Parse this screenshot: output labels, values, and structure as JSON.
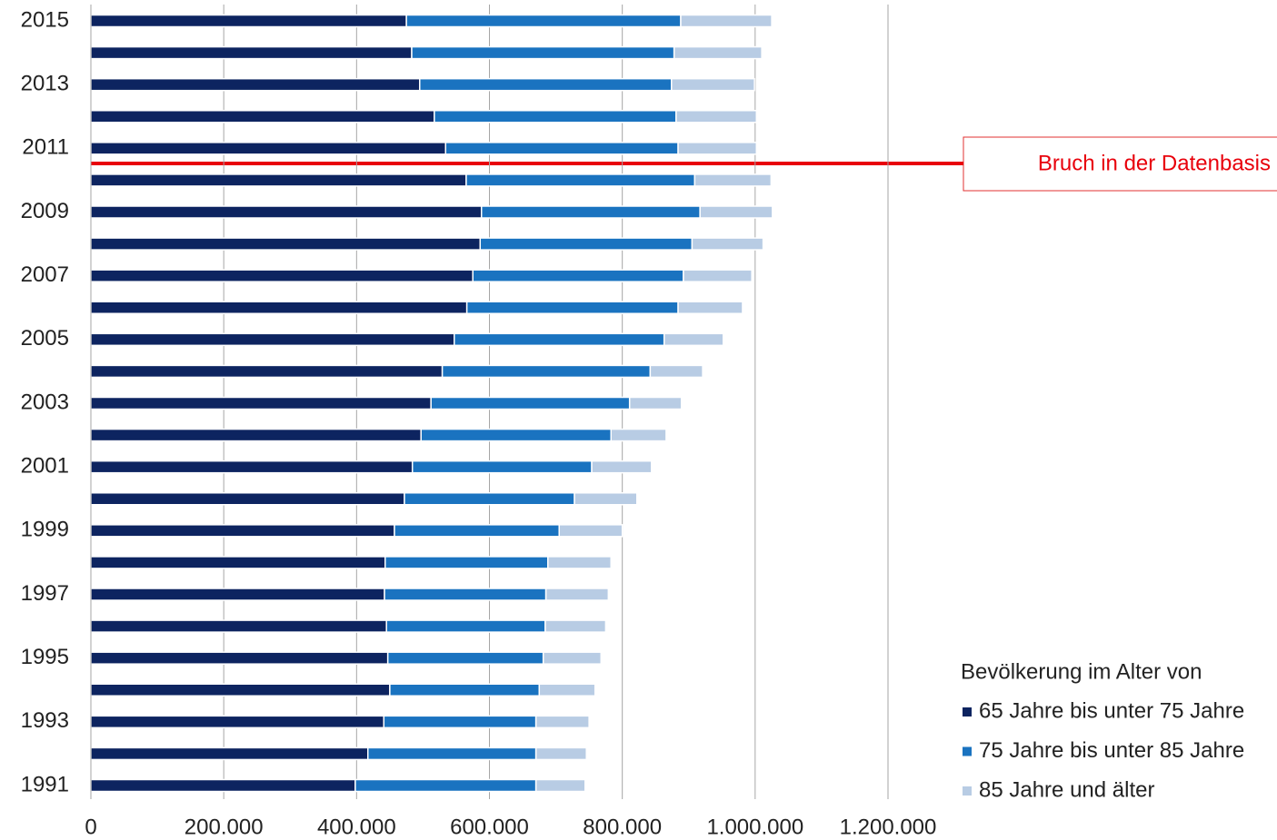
{
  "chart_data": {
    "type": "stacked_barh",
    "categories": [
      "1991",
      null,
      "1993",
      null,
      "1995",
      null,
      "1997",
      null,
      "1999",
      null,
      "2001",
      null,
      "2003",
      null,
      "2005",
      null,
      "2007",
      null,
      "2009",
      null,
      "2011",
      null,
      "2013",
      null,
      "2015"
    ],
    "series": [
      {
        "name": "65 Jahre bis unter 75 Jahre",
        "color": "#0d2460",
        "values": [
          398000,
          417000,
          441000,
          450000,
          447000,
          445000,
          442000,
          443000,
          457000,
          472000,
          484000,
          497000,
          512000,
          529000,
          547000,
          566000,
          575000,
          586000,
          588000,
          565000,
          534000,
          517000,
          495000,
          483000,
          475000
        ]
      },
      {
        "name": "75 Jahre bis unter 85 Jahre",
        "color": "#1a73c0",
        "values": [
          272000,
          253000,
          229000,
          225000,
          234000,
          239000,
          243000,
          245000,
          248000,
          256000,
          270000,
          286000,
          299000,
          313000,
          316000,
          318000,
          317000,
          319000,
          329000,
          344000,
          350000,
          364000,
          379000,
          395000,
          413000
        ]
      },
      {
        "name": "85 Jahre und älter",
        "color": "#b8cce4",
        "values": [
          74000,
          76000,
          80000,
          84000,
          87000,
          91000,
          94000,
          95000,
          95000,
          94000,
          90000,
          83000,
          78000,
          79000,
          89000,
          97000,
          103000,
          107000,
          109000,
          115000,
          118000,
          121000,
          125000,
          132000,
          137000
        ]
      }
    ],
    "xlim": [
      0,
      1200000
    ],
    "xticks": [
      0,
      {
        "value": 200000,
        "label": "200.000"
      },
      {
        "value": 400000,
        "label": "400.000"
      },
      {
        "value": 600000,
        "label": "600.000"
      },
      {
        "value": 800000,
        "label": "800.000"
      },
      {
        "value": 1000000,
        "label": "1.000.000"
      },
      {
        "value": 1200000,
        "label": "1.200.000"
      }
    ],
    "grid": true,
    "legend_title": "Bevölkerung im Alter von",
    "annotation": "Bruch in der Datenbasis"
  }
}
